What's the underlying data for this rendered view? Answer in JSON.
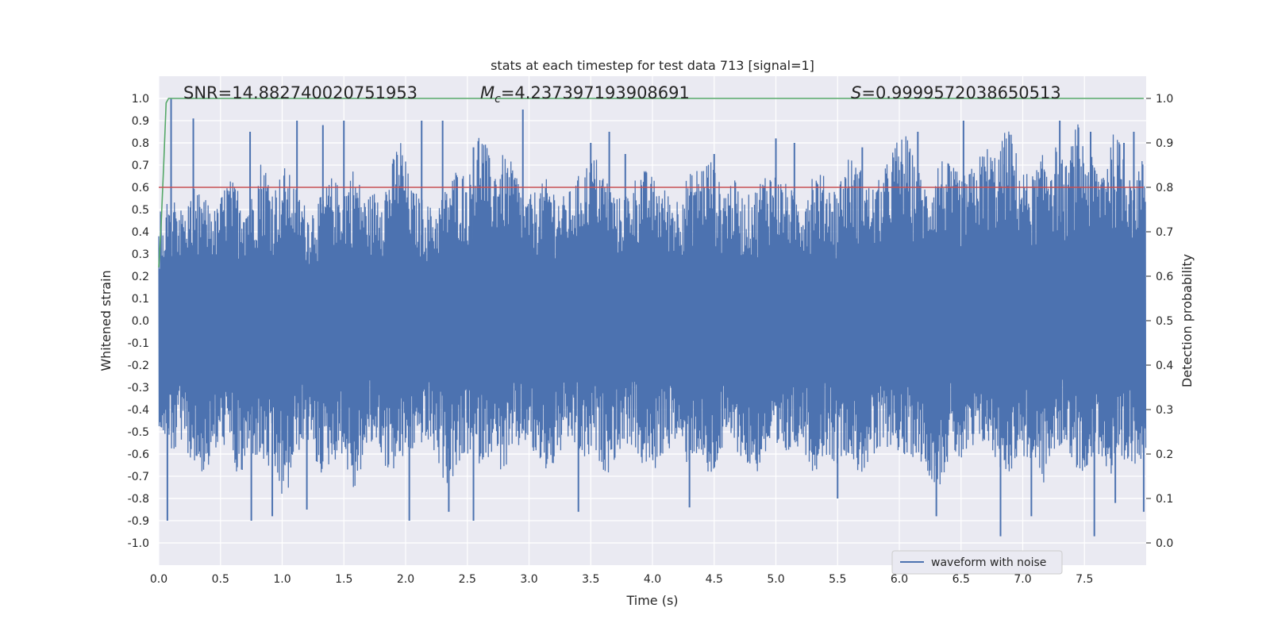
{
  "chart_data": {
    "type": "line",
    "title": "stats at each timestep for test data 713 [signal=1]",
    "xlabel": "Time (s)",
    "ylabel": "Whitened strain",
    "y2label": "Detection probability",
    "xlim": [
      0.0,
      8.0
    ],
    "ylim": [
      -1.1,
      1.1
    ],
    "y2lim": [
      -0.05,
      1.05
    ],
    "x_ticks": [
      "0.0",
      "0.5",
      "1.0",
      "1.5",
      "2.0",
      "2.5",
      "3.0",
      "3.5",
      "4.0",
      "4.5",
      "5.0",
      "5.5",
      "6.0",
      "6.5",
      "7.0",
      "7.5"
    ],
    "y_ticks": [
      "1.0",
      "0.9",
      "0.8",
      "0.7",
      "0.6",
      "0.5",
      "0.4",
      "0.3",
      "0.2",
      "0.1",
      "0.0",
      "-0.1",
      "-0.2",
      "-0.3",
      "-0.4",
      "-0.5",
      "-0.6",
      "-0.7",
      "-0.8",
      "-0.9",
      "-1.0"
    ],
    "y2_ticks": [
      "1.0",
      "0.9",
      "0.8",
      "0.7",
      "0.6",
      "0.5",
      "0.4",
      "0.3",
      "0.2",
      "0.1",
      "0.0"
    ],
    "annotations": {
      "snr": "SNR=14.882740020751953",
      "mc_symbol": "M",
      "mc_sub": "c",
      "mc_value": "=4.237397193908691",
      "s_symbol": "S",
      "s_value": "=0.9999572038650513"
    },
    "legend": {
      "position": "lower-right",
      "entries": [
        "waveform with noise"
      ]
    },
    "grid": true,
    "series": [
      {
        "name": "waveform with noise",
        "axis": "left",
        "color": "#4c72b0",
        "duration": 8.0,
        "envelope_upper": [
          0.5,
          0.55,
          0.5,
          0.6,
          0.55,
          0.5,
          0.65,
          0.6,
          0.55,
          0.75,
          0.6,
          0.7,
          0.6,
          0.5,
          0.55,
          0.65,
          0.6,
          0.7,
          0.55,
          0.6,
          0.65,
          0.85,
          0.6,
          0.55,
          0.5,
          0.6,
          0.7,
          0.65,
          0.9,
          0.7,
          0.75,
          0.7,
          0.55,
          0.6,
          0.65,
          0.55,
          0.6,
          0.7,
          0.75,
          0.65,
          0.55,
          0.6,
          0.7,
          0.65,
          0.6,
          0.55,
          0.65,
          0.7,
          0.75,
          0.6,
          0.65,
          0.55,
          0.6,
          0.7,
          0.65,
          0.6,
          0.55,
          0.7,
          0.65,
          0.6,
          0.75,
          0.7,
          0.6,
          0.65,
          0.8,
          0.85,
          0.7,
          0.6,
          0.75,
          0.7,
          0.65,
          0.7,
          0.8,
          0.75,
          0.9,
          0.7,
          0.65,
          0.75,
          0.8,
          0.7,
          0.9,
          0.75,
          0.7,
          0.85,
          0.8,
          0.7,
          0.75
        ],
        "envelope_lower": [
          -0.5,
          -0.6,
          -0.55,
          -0.65,
          -0.7,
          -0.6,
          -0.55,
          -0.75,
          -0.6,
          -0.65,
          -0.7,
          -0.85,
          -0.6,
          -0.55,
          -0.7,
          -0.65,
          -0.6,
          -0.8,
          -0.6,
          -0.55,
          -0.7,
          -0.65,
          -0.6,
          -0.55,
          -0.6,
          -0.75,
          -0.7,
          -0.6,
          -0.65,
          -0.6,
          -0.7,
          -0.6,
          -0.55,
          -0.65,
          -0.7,
          -0.6,
          -0.55,
          -0.65,
          -0.6,
          -0.7,
          -0.6,
          -0.55,
          -0.65,
          -0.7,
          -0.6,
          -0.55,
          -0.65,
          -0.6,
          -0.75,
          -0.6,
          -0.55,
          -0.65,
          -0.7,
          -0.6,
          -0.65,
          -0.6,
          -0.55,
          -0.7,
          -0.6,
          -0.65,
          -0.6,
          -0.7,
          -0.65,
          -0.6,
          -0.55,
          -0.65,
          -0.6,
          -0.7,
          -0.75,
          -0.6,
          -0.65,
          -0.6,
          -0.55,
          -0.65,
          -0.7,
          -0.6,
          -0.65,
          -0.75,
          -0.6,
          -0.55,
          -0.7,
          -0.65,
          -0.6,
          -0.75,
          -0.7,
          -0.65,
          -0.6
        ],
        "spikes_upper": [
          [
            0.1,
            1.0
          ],
          [
            0.28,
            0.91
          ],
          [
            0.74,
            0.85
          ],
          [
            1.12,
            0.9
          ],
          [
            1.33,
            0.88
          ],
          [
            1.5,
            0.9
          ],
          [
            2.13,
            0.9
          ],
          [
            2.3,
            0.9
          ],
          [
            2.55,
            0.78
          ],
          [
            2.95,
            0.95
          ],
          [
            3.5,
            0.8
          ],
          [
            3.65,
            0.85
          ],
          [
            3.78,
            0.75
          ],
          [
            4.5,
            0.75
          ],
          [
            5.0,
            0.82
          ],
          [
            5.15,
            0.8
          ],
          [
            5.7,
            0.78
          ],
          [
            5.95,
            0.72
          ],
          [
            6.15,
            0.85
          ],
          [
            6.52,
            0.9
          ],
          [
            6.85,
            0.78
          ],
          [
            7.3,
            0.9
          ],
          [
            7.55,
            0.85
          ],
          [
            7.82,
            0.8
          ],
          [
            7.9,
            0.85
          ]
        ],
        "spikes_lower": [
          [
            0.07,
            -0.9
          ],
          [
            0.75,
            -0.9
          ],
          [
            0.92,
            -0.88
          ],
          [
            1.2,
            -0.85
          ],
          [
            2.03,
            -0.9
          ],
          [
            2.35,
            -0.86
          ],
          [
            2.55,
            -0.9
          ],
          [
            3.4,
            -0.86
          ],
          [
            4.3,
            -0.84
          ],
          [
            5.5,
            -0.8
          ],
          [
            6.3,
            -0.88
          ],
          [
            6.82,
            -0.97
          ],
          [
            7.07,
            -0.88
          ],
          [
            7.58,
            -0.97
          ],
          [
            7.75,
            -0.82
          ],
          [
            7.98,
            -0.86
          ]
        ]
      },
      {
        "name": "",
        "axis": "right",
        "color": "#55a868",
        "x": [
          0.0,
          0.02,
          0.04,
          0.06,
          0.08,
          0.1,
          7.98
        ],
        "y": [
          0.62,
          0.72,
          0.85,
          0.99,
          1.0,
          1.0,
          1.0
        ]
      },
      {
        "name": "",
        "axis": "right",
        "color": "#c44e52",
        "x": [
          0.0,
          7.98
        ],
        "y": [
          0.8,
          0.8
        ]
      }
    ]
  }
}
